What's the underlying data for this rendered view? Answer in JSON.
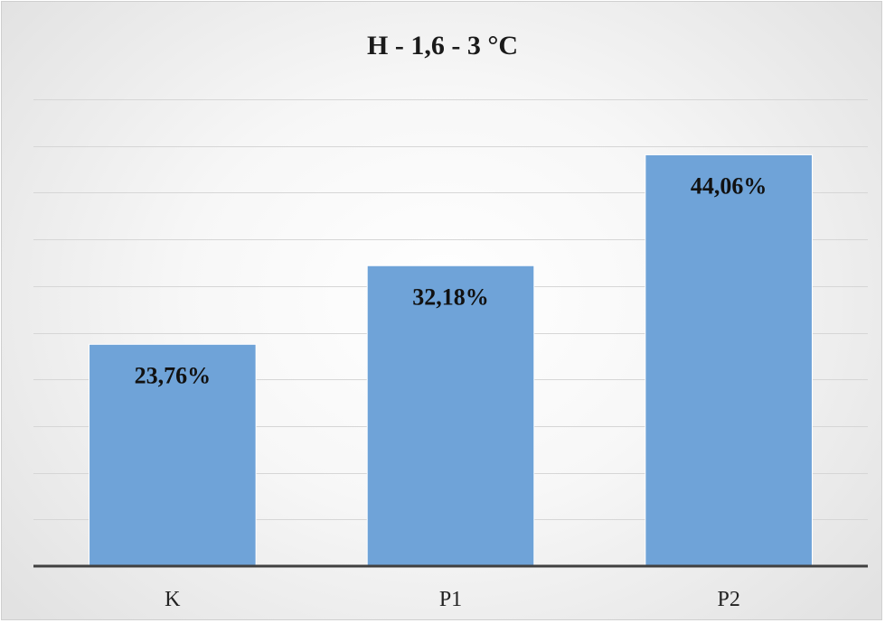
{
  "chart_data": {
    "type": "bar",
    "title": "H - 1,6 - 3 °C",
    "categories": [
      "K",
      "P1",
      "P2"
    ],
    "values": [
      23.76,
      32.18,
      44.06
    ],
    "data_labels": [
      "23,76%",
      "32,18%",
      "44,06%"
    ],
    "xlabel": "",
    "ylabel": "",
    "ylim": [
      0,
      50
    ],
    "grid": true,
    "legend": "none",
    "bar_color": "#6fa3d8",
    "gridline_color": "#d6d6d6",
    "axis_color": "#404040"
  }
}
